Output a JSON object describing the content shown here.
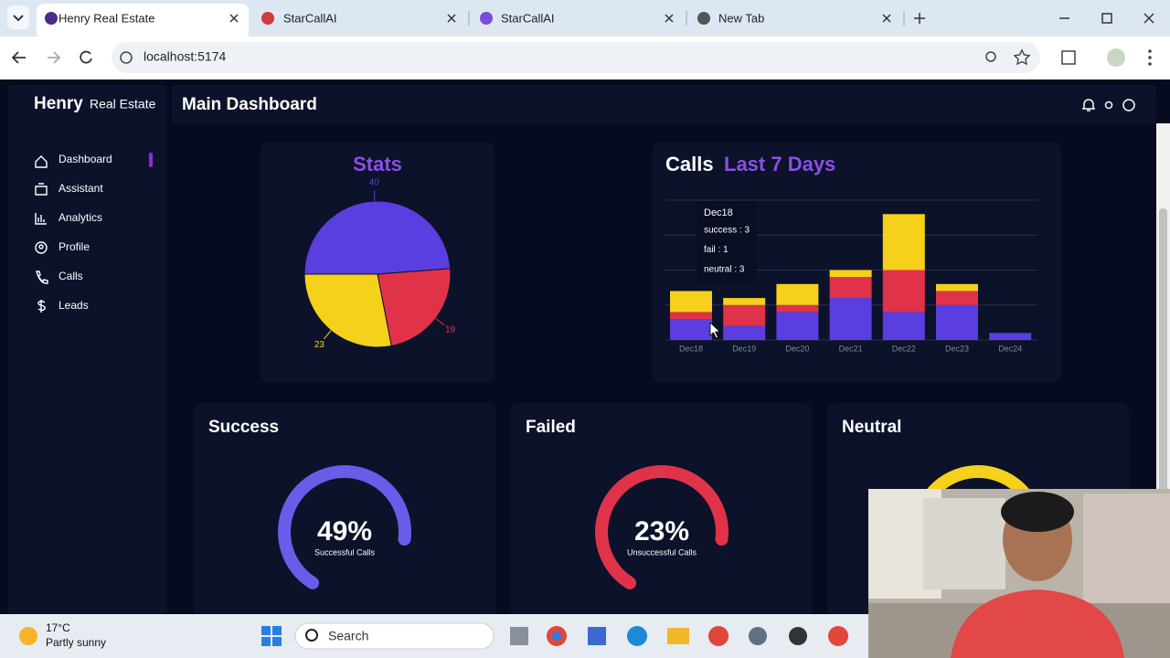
{
  "browser": {
    "tabs": [
      "Henry Real Estate",
      "StarCallAI",
      "StarCallAI",
      "New Tab"
    ],
    "url": "localhost:5174"
  },
  "sidebar": {
    "brand": "Henry",
    "brand_sub": "Real Estate",
    "nav": [
      "Dashboard",
      "Assistant",
      "Analytics",
      "Profile",
      "Calls",
      "Leads"
    ]
  },
  "header": {
    "title": "Main Dashboard"
  },
  "chart_data": [
    {
      "type": "pie",
      "title": "Stats",
      "values": [
        40,
        19,
        23
      ],
      "colors": [
        "#5a3ee0",
        "#e0334a",
        "#f5d11c"
      ]
    },
    {
      "type": "bar",
      "stacked": true,
      "title": "Calls",
      "subtitle": "Last 7 Days",
      "categories": [
        "Dec18",
        "Dec19",
        "Dec20",
        "Dec21",
        "Dec22",
        "Dec23",
        "Dec24"
      ],
      "series": [
        {
          "name": "success",
          "color": "#5a3ee0",
          "values": [
            3,
            2,
            4,
            6,
            4,
            5,
            1
          ]
        },
        {
          "name": "fail",
          "color": "#e0334a",
          "values": [
            1,
            3,
            1,
            3,
            6,
            2,
            0
          ]
        },
        {
          "name": "neutral",
          "color": "#f5d11c",
          "values": [
            3,
            1,
            3,
            1,
            8,
            1,
            0
          ]
        }
      ],
      "ylim": [
        0,
        20
      ],
      "yticks": [
        0,
        5,
        10,
        15,
        20
      ],
      "grid": true,
      "tooltip": {
        "title": "Dec18",
        "lines": [
          "success : 3",
          "fail : 1",
          "neutral : 3"
        ]
      }
    }
  ],
  "gauges": [
    {
      "title": "Success",
      "value": 49,
      "value_label": "49%",
      "caption": "Successful Calls",
      "color": "#6a5ce8"
    },
    {
      "title": "Failed",
      "value": 23,
      "value_label": "23%",
      "caption": "Unsuccessful Calls",
      "color": "#e0334a"
    },
    {
      "title": "Neutral",
      "color": "#f5d11c"
    }
  ],
  "taskbar": {
    "temperature": "17°C",
    "weather": "Partly sunny",
    "search": "Search"
  }
}
